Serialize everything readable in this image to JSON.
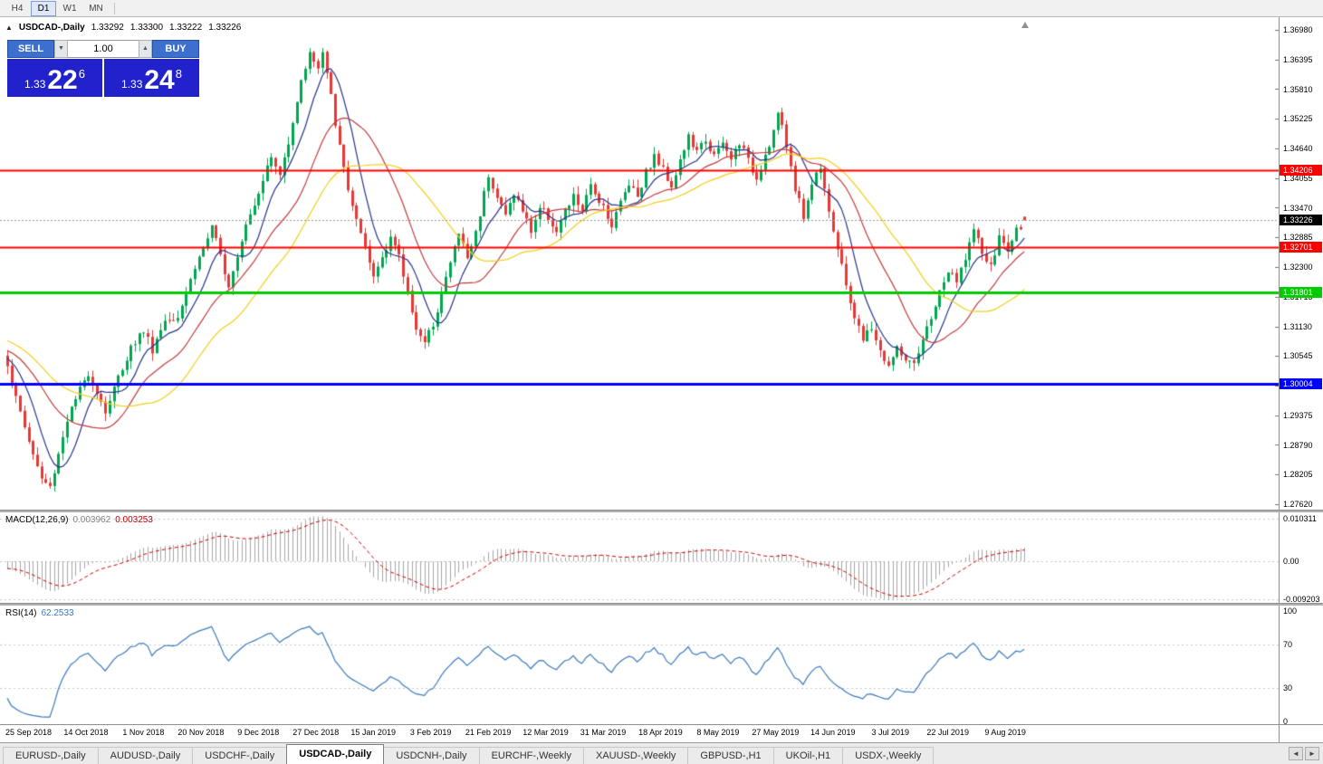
{
  "toolbar": {
    "periods": [
      "H4",
      "D1",
      "W1",
      "MN"
    ],
    "active_period": "D1"
  },
  "chart_header": {
    "collapse_icon": "▲",
    "symbol": "USDCAD-,Daily",
    "open": "1.33292",
    "high": "1.33300",
    "low": "1.33222",
    "close": "1.33226"
  },
  "trade_panel": {
    "sell_label": "SELL",
    "buy_label": "BUY",
    "volume": "1.00",
    "volume_down_icon": "▼",
    "volume_up_icon": "▲",
    "panel_color": "#2222cc",
    "sell_price": {
      "prefix": "1.33",
      "big": "22",
      "sup": "6"
    },
    "buy_price": {
      "prefix": "1.33",
      "big": "24",
      "sup": "8"
    }
  },
  "macd_panel": {
    "label": "MACD(12,26,9)",
    "value1": "0.003962",
    "value2": "0.003253",
    "axis_ticks": [
      "0.010311",
      "0.00",
      "-0.009203"
    ]
  },
  "rsi_panel": {
    "label": "RSI(14)",
    "value": "62.2533",
    "axis_ticks": [
      "100",
      "70",
      "30",
      "0"
    ]
  },
  "tabs": {
    "items": [
      "EURUSD-,Daily",
      "AUDUSD-,Daily",
      "USDCHF-,Daily",
      "USDCAD-,Daily",
      "USDCNH-,Daily",
      "EURCHF-,Weekly",
      "XAUUSD-,Weekly",
      "GBPUSD-,H1",
      "UKOil-,H1",
      "USDX-,Weekly"
    ],
    "active": "USDCAD-,Daily",
    "scroll_left_icon": "◄",
    "scroll_right_icon": "►"
  },
  "chart_data": {
    "type": "candlestick",
    "symbol": "USDCAD-",
    "timeframe": "Daily",
    "ohlc_last": {
      "open": 1.33292,
      "high": 1.333,
      "low": 1.33222,
      "close": 1.33226
    },
    "current_bid": 1.33226,
    "current_bid_label": "1.33226",
    "price_min": 1.2762,
    "price_max": 1.3698,
    "y_ticks": [
      "1.36980",
      "1.36395",
      "1.35810",
      "1.35225",
      "1.34640",
      "1.34055",
      "1.33470",
      "1.32885",
      "1.32300",
      "1.31715",
      "1.31130",
      "1.30545",
      "1.29960",
      "1.29375",
      "1.28790",
      "1.28205",
      "1.27620"
    ],
    "x_labels": [
      "25 Sep 2018",
      "14 Oct 2018",
      "1 Nov 2018",
      "20 Nov 2018",
      "9 Dec 2018",
      "27 Dec 2018",
      "15 Jan 2019",
      "3 Feb 2019",
      "21 Feb 2019",
      "12 Mar 2019",
      "31 Mar 2019",
      "18 Apr 2019",
      "8 May 2019",
      "27 May 2019",
      "14 Jun 2019",
      "3 Jul 2019",
      "22 Jul 2019",
      "9 Aug 2019"
    ],
    "horizontal_lines": [
      {
        "price": 1.34206,
        "label": "1.34206",
        "color": "#ff0000",
        "width": 2
      },
      {
        "price": 1.32701,
        "label": "1.32701",
        "color": "#ff0000",
        "width": 2
      },
      {
        "price": 1.31801,
        "label": "1.31801",
        "color": "#00cc00",
        "width": 3
      },
      {
        "price": 1.30004,
        "label": "1.30004",
        "color": "#0000ff",
        "width": 3
      }
    ],
    "candle_count": 240,
    "moving_averages": [
      {
        "period": 8,
        "color": "#27348b"
      },
      {
        "period": 20,
        "color": "#c23b3b"
      },
      {
        "period": 34,
        "color": "#f2cf1d"
      }
    ],
    "colors": {
      "up": "#00a651",
      "down": "#e53935"
    },
    "indicators": {
      "macd": {
        "fast": 12,
        "slow": 26,
        "signal": 9,
        "ylim": [
          -0.009203,
          0.010311
        ]
      },
      "rsi": {
        "period": 14,
        "levels": [
          70,
          30
        ],
        "ylim": [
          0,
          100
        ]
      }
    },
    "price_path_anchors": [
      [
        0,
        1.304
      ],
      [
        2,
        1.297
      ],
      [
        4,
        1.2915
      ],
      [
        6,
        1.286
      ],
      [
        8,
        1.2812
      ],
      [
        10,
        1.2795
      ],
      [
        12,
        1.2862
      ],
      [
        14,
        1.293
      ],
      [
        16,
        1.2968
      ],
      [
        19,
        1.3022
      ],
      [
        21,
        1.2985
      ],
      [
        23,
        1.2945
      ],
      [
        26,
        1.3012
      ],
      [
        29,
        1.3072
      ],
      [
        32,
        1.3106
      ],
      [
        34,
        1.3068
      ],
      [
        37,
        1.3126
      ],
      [
        40,
        1.3136
      ],
      [
        42,
        1.318
      ],
      [
        44,
        1.323
      ],
      [
        46,
        1.3268
      ],
      [
        48,
        1.3306
      ],
      [
        50,
        1.3252
      ],
      [
        52,
        1.3196
      ],
      [
        54,
        1.3256
      ],
      [
        56,
        1.3318
      ],
      [
        58,
        1.3356
      ],
      [
        60,
        1.3406
      ],
      [
        62,
        1.3446
      ],
      [
        64,
        1.341
      ],
      [
        66,
        1.348
      ],
      [
        68,
        1.356
      ],
      [
        70,
        1.3626
      ],
      [
        71,
        1.3658
      ],
      [
        72,
        1.3635
      ],
      [
        73,
        1.362
      ],
      [
        74,
        1.3652
      ],
      [
        76,
        1.3565
      ],
      [
        78,
        1.3465
      ],
      [
        80,
        1.3385
      ],
      [
        82,
        1.332
      ],
      [
        84,
        1.3262
      ],
      [
        86,
        1.321
      ],
      [
        88,
        1.3252
      ],
      [
        90,
        1.3292
      ],
      [
        92,
        1.3248
      ],
      [
        94,
        1.318
      ],
      [
        96,
        1.3112
      ],
      [
        98,
        1.3076
      ],
      [
        100,
        1.312
      ],
      [
        102,
        1.3178
      ],
      [
        104,
        1.3238
      ],
      [
        106,
        1.3298
      ],
      [
        108,
        1.3248
      ],
      [
        110,
        1.3298
      ],
      [
        113,
        1.3415
      ],
      [
        115,
        1.3368
      ],
      [
        117,
        1.3332
      ],
      [
        119,
        1.3378
      ],
      [
        121,
        1.334
      ],
      [
        123,
        1.3302
      ],
      [
        125,
        1.3348
      ],
      [
        127,
        1.333
      ],
      [
        129,
        1.33
      ],
      [
        131,
        1.3338
      ],
      [
        133,
        1.3368
      ],
      [
        135,
        1.3342
      ],
      [
        137,
        1.3388
      ],
      [
        140,
        1.3352
      ],
      [
        142,
        1.3312
      ],
      [
        144,
        1.3358
      ],
      [
        146,
        1.3398
      ],
      [
        148,
        1.3372
      ],
      [
        150,
        1.3418
      ],
      [
        152,
        1.3448
      ],
      [
        154,
        1.3422
      ],
      [
        156,
        1.3392
      ],
      [
        158,
        1.344
      ],
      [
        160,
        1.3486
      ],
      [
        162,
        1.3455
      ],
      [
        164,
        1.3482
      ],
      [
        166,
        1.3448
      ],
      [
        168,
        1.3472
      ],
      [
        170,
        1.3442
      ],
      [
        172,
        1.3478
      ],
      [
        174,
        1.3438
      ],
      [
        176,
        1.3406
      ],
      [
        178,
        1.3452
      ],
      [
        180,
        1.3498
      ],
      [
        181,
        1.3535
      ],
      [
        183,
        1.3468
      ],
      [
        185,
        1.3388
      ],
      [
        187,
        1.333
      ],
      [
        189,
        1.3395
      ],
      [
        191,
        1.3432
      ],
      [
        193,
        1.3345
      ],
      [
        195,
        1.3262
      ],
      [
        197,
        1.3195
      ],
      [
        199,
        1.3132
      ],
      [
        201,
        1.3085
      ],
      [
        203,
        1.3112
      ],
      [
        205,
        1.3062
      ],
      [
        207,
        1.3035
      ],
      [
        209,
        1.3068
      ],
      [
        211,
        1.3048
      ],
      [
        213,
        1.3032
      ],
      [
        215,
        1.3082
      ],
      [
        217,
        1.3132
      ],
      [
        219,
        1.3178
      ],
      [
        221,
        1.3222
      ],
      [
        223,
        1.3198
      ],
      [
        225,
        1.3252
      ],
      [
        227,
        1.3302
      ],
      [
        229,
        1.3258
      ],
      [
        231,
        1.3228
      ],
      [
        233,
        1.3288
      ],
      [
        235,
        1.3262
      ],
      [
        237,
        1.3302
      ],
      [
        239,
        1.33226
      ]
    ]
  }
}
